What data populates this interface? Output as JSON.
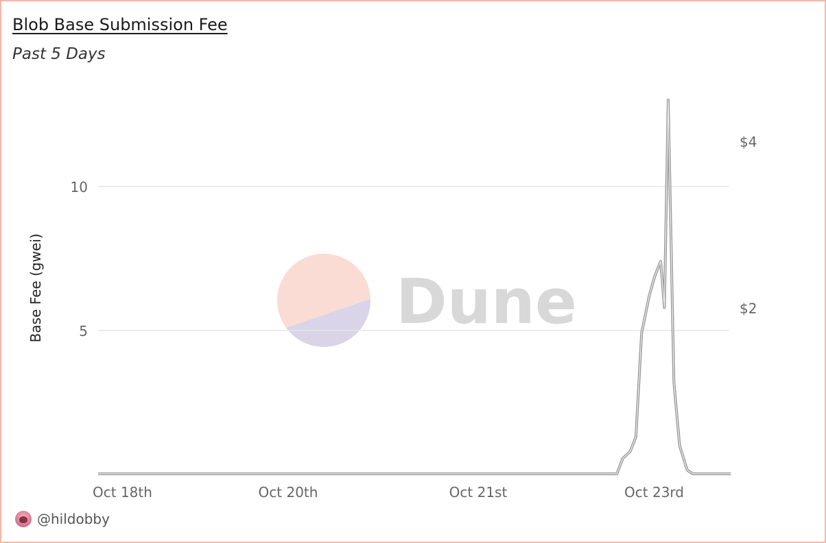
{
  "header": {
    "title": "Blob Base Submission Fee",
    "subtitle": "Past 5 Days"
  },
  "watermark": {
    "text": "Dune"
  },
  "footer": {
    "handle": "@hildobby",
    "avatar_icon": "user-avatar-icon"
  },
  "colors": {
    "border": "#f5b8a8",
    "line": "#9a9a9a",
    "grid": "#e6e6e6",
    "logo_top": "#fadcd4",
    "logo_bottom": "#d9d4e8",
    "watermark_text": "#d8d8d8"
  },
  "chart_data": {
    "type": "line",
    "title": "Blob Base Submission Fee",
    "subtitle": "Past 5 Days",
    "ylabel": "Base Fee (gwei)",
    "y_ticks": [
      5,
      10
    ],
    "ylim": [
      0,
      14
    ],
    "y_right_ticks": [
      "$2",
      "$4"
    ],
    "y_right_values": [
      2,
      4
    ],
    "y_right_lim": [
      0,
      5.2
    ],
    "x_tick_labels": [
      "Oct 18th",
      "Oct 20th",
      "Oct 21st",
      "Oct 23rd"
    ],
    "x_tick_days": [
      0,
      1.0,
      2.0,
      3.0
    ],
    "grid": true,
    "legend": "none",
    "series": [
      {
        "x_days": [
          0,
          2.73,
          2.76,
          2.8,
          2.83,
          2.86,
          2.9,
          2.93,
          2.96,
          2.98,
          3.0,
          3.03,
          3.06,
          3.1,
          3.13,
          3.16,
          3.2,
          3.23,
          3.28,
          3.33
        ],
        "values": [
          0.02,
          0.02,
          0.55,
          0.8,
          1.3,
          4.9,
          6.2,
          6.9,
          7.4,
          5.8,
          13.0,
          3.2,
          1.0,
          0.15,
          0.02,
          0.02,
          0.02,
          0.02,
          0.02,
          0.02
        ]
      }
    ]
  }
}
